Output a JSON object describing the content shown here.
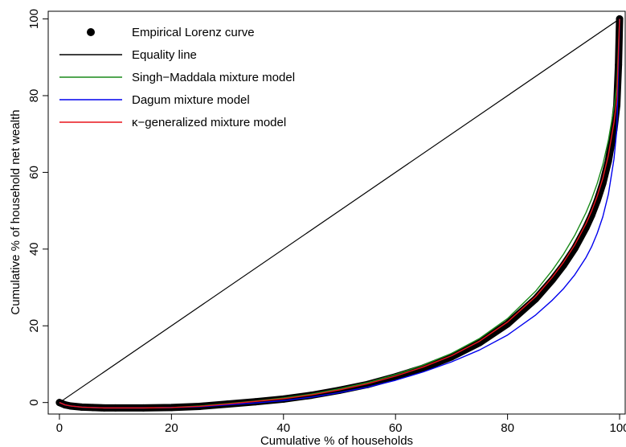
{
  "chart_data": {
    "type": "line",
    "title": "",
    "xlabel": "Cumulative % of households",
    "ylabel": "Cumulative % of household net wealth",
    "xlim": [
      -2,
      101
    ],
    "ylim": [
      -3,
      102
    ],
    "x_ticks": [
      0,
      20,
      40,
      60,
      80,
      100
    ],
    "y_ticks": [
      0,
      20,
      40,
      60,
      80,
      100
    ],
    "grid": false,
    "legend_position": "top-left",
    "series": [
      {
        "name": "Empirical Lorenz curve",
        "style": "points",
        "color": "#000000",
        "x": [
          0,
          1,
          2,
          4,
          6,
          8,
          10,
          15,
          20,
          25,
          30,
          35,
          40,
          45,
          50,
          55,
          60,
          65,
          70,
          75,
          80,
          85,
          88,
          90,
          92,
          94,
          95,
          96,
          97,
          98,
          99,
          99.5,
          99.8,
          100
        ],
        "y": [
          0,
          -0.6,
          -0.9,
          -1.2,
          -1.3,
          -1.4,
          -1.4,
          -1.4,
          -1.3,
          -1.0,
          -0.4,
          0.2,
          0.9,
          1.9,
          3.2,
          4.7,
          6.7,
          9.0,
          11.9,
          15.6,
          20.5,
          27.0,
          32.0,
          35.8,
          40.2,
          45.6,
          48.8,
          52.6,
          57.1,
          63.0,
          71.3,
          77.5,
          88.0,
          100
        ]
      },
      {
        "name": "Equality line",
        "style": "line",
        "color": "#000000",
        "x": [
          0,
          100
        ],
        "y": [
          0,
          100
        ]
      },
      {
        "name": "Singh−Maddala mixture model",
        "style": "line",
        "color": "#1a8a1a",
        "x": [
          0,
          1,
          2,
          4,
          6,
          8,
          10,
          15,
          20,
          25,
          30,
          35,
          40,
          45,
          50,
          55,
          60,
          65,
          70,
          75,
          80,
          85,
          88,
          90,
          92,
          94,
          95,
          96,
          97,
          98,
          99,
          99.5,
          100
        ],
        "y": [
          0,
          -0.6,
          -0.9,
          -1.2,
          -1.3,
          -1.4,
          -1.4,
          -1.4,
          -1.3,
          -0.9,
          -0.3,
          0.4,
          1.2,
          2.2,
          3.6,
          5.2,
          7.3,
          9.8,
          12.8,
          16.7,
          21.9,
          29.0,
          34.5,
          38.7,
          43.6,
          49.5,
          53.0,
          57.1,
          62.0,
          68.4,
          76.9,
          82.4,
          100
        ]
      },
      {
        "name": "Dagum mixture model",
        "style": "line",
        "color": "#0000ee",
        "x": [
          0,
          1,
          2,
          4,
          6,
          8,
          10,
          15,
          20,
          25,
          30,
          35,
          40,
          45,
          50,
          55,
          60,
          65,
          70,
          75,
          80,
          85,
          88,
          90,
          92,
          94,
          95,
          96,
          97,
          98,
          99,
          99.5,
          100
        ],
        "y": [
          0,
          -0.6,
          -0.9,
          -1.2,
          -1.3,
          -1.4,
          -1.4,
          -1.4,
          -1.3,
          -1.1,
          -0.6,
          -0.1,
          0.5,
          1.4,
          2.6,
          4.0,
          5.8,
          8.0,
          10.6,
          13.7,
          17.6,
          22.8,
          26.7,
          29.7,
          33.3,
          37.8,
          40.6,
          44.1,
          48.4,
          54.3,
          63.5,
          71.0,
          100
        ]
      },
      {
        "name": "κ−generalized mixture model",
        "style": "line",
        "color": "#e8141c",
        "x": [
          0,
          1,
          2,
          4,
          6,
          8,
          10,
          15,
          20,
          25,
          30,
          35,
          40,
          45,
          50,
          55,
          60,
          65,
          70,
          75,
          80,
          85,
          88,
          90,
          92,
          94,
          95,
          96,
          97,
          98,
          99,
          99.5,
          100
        ],
        "y": [
          0,
          -0.6,
          -0.9,
          -1.2,
          -1.3,
          -1.4,
          -1.4,
          -1.4,
          -1.3,
          -1.0,
          -0.4,
          0.3,
          1.0,
          2.0,
          3.3,
          4.9,
          6.9,
          9.3,
          12.2,
          16.0,
          21.0,
          27.6,
          32.7,
          36.6,
          41.1,
          46.6,
          49.9,
          53.8,
          58.4,
          64.5,
          73.0,
          79.0,
          100
        ]
      }
    ]
  }
}
